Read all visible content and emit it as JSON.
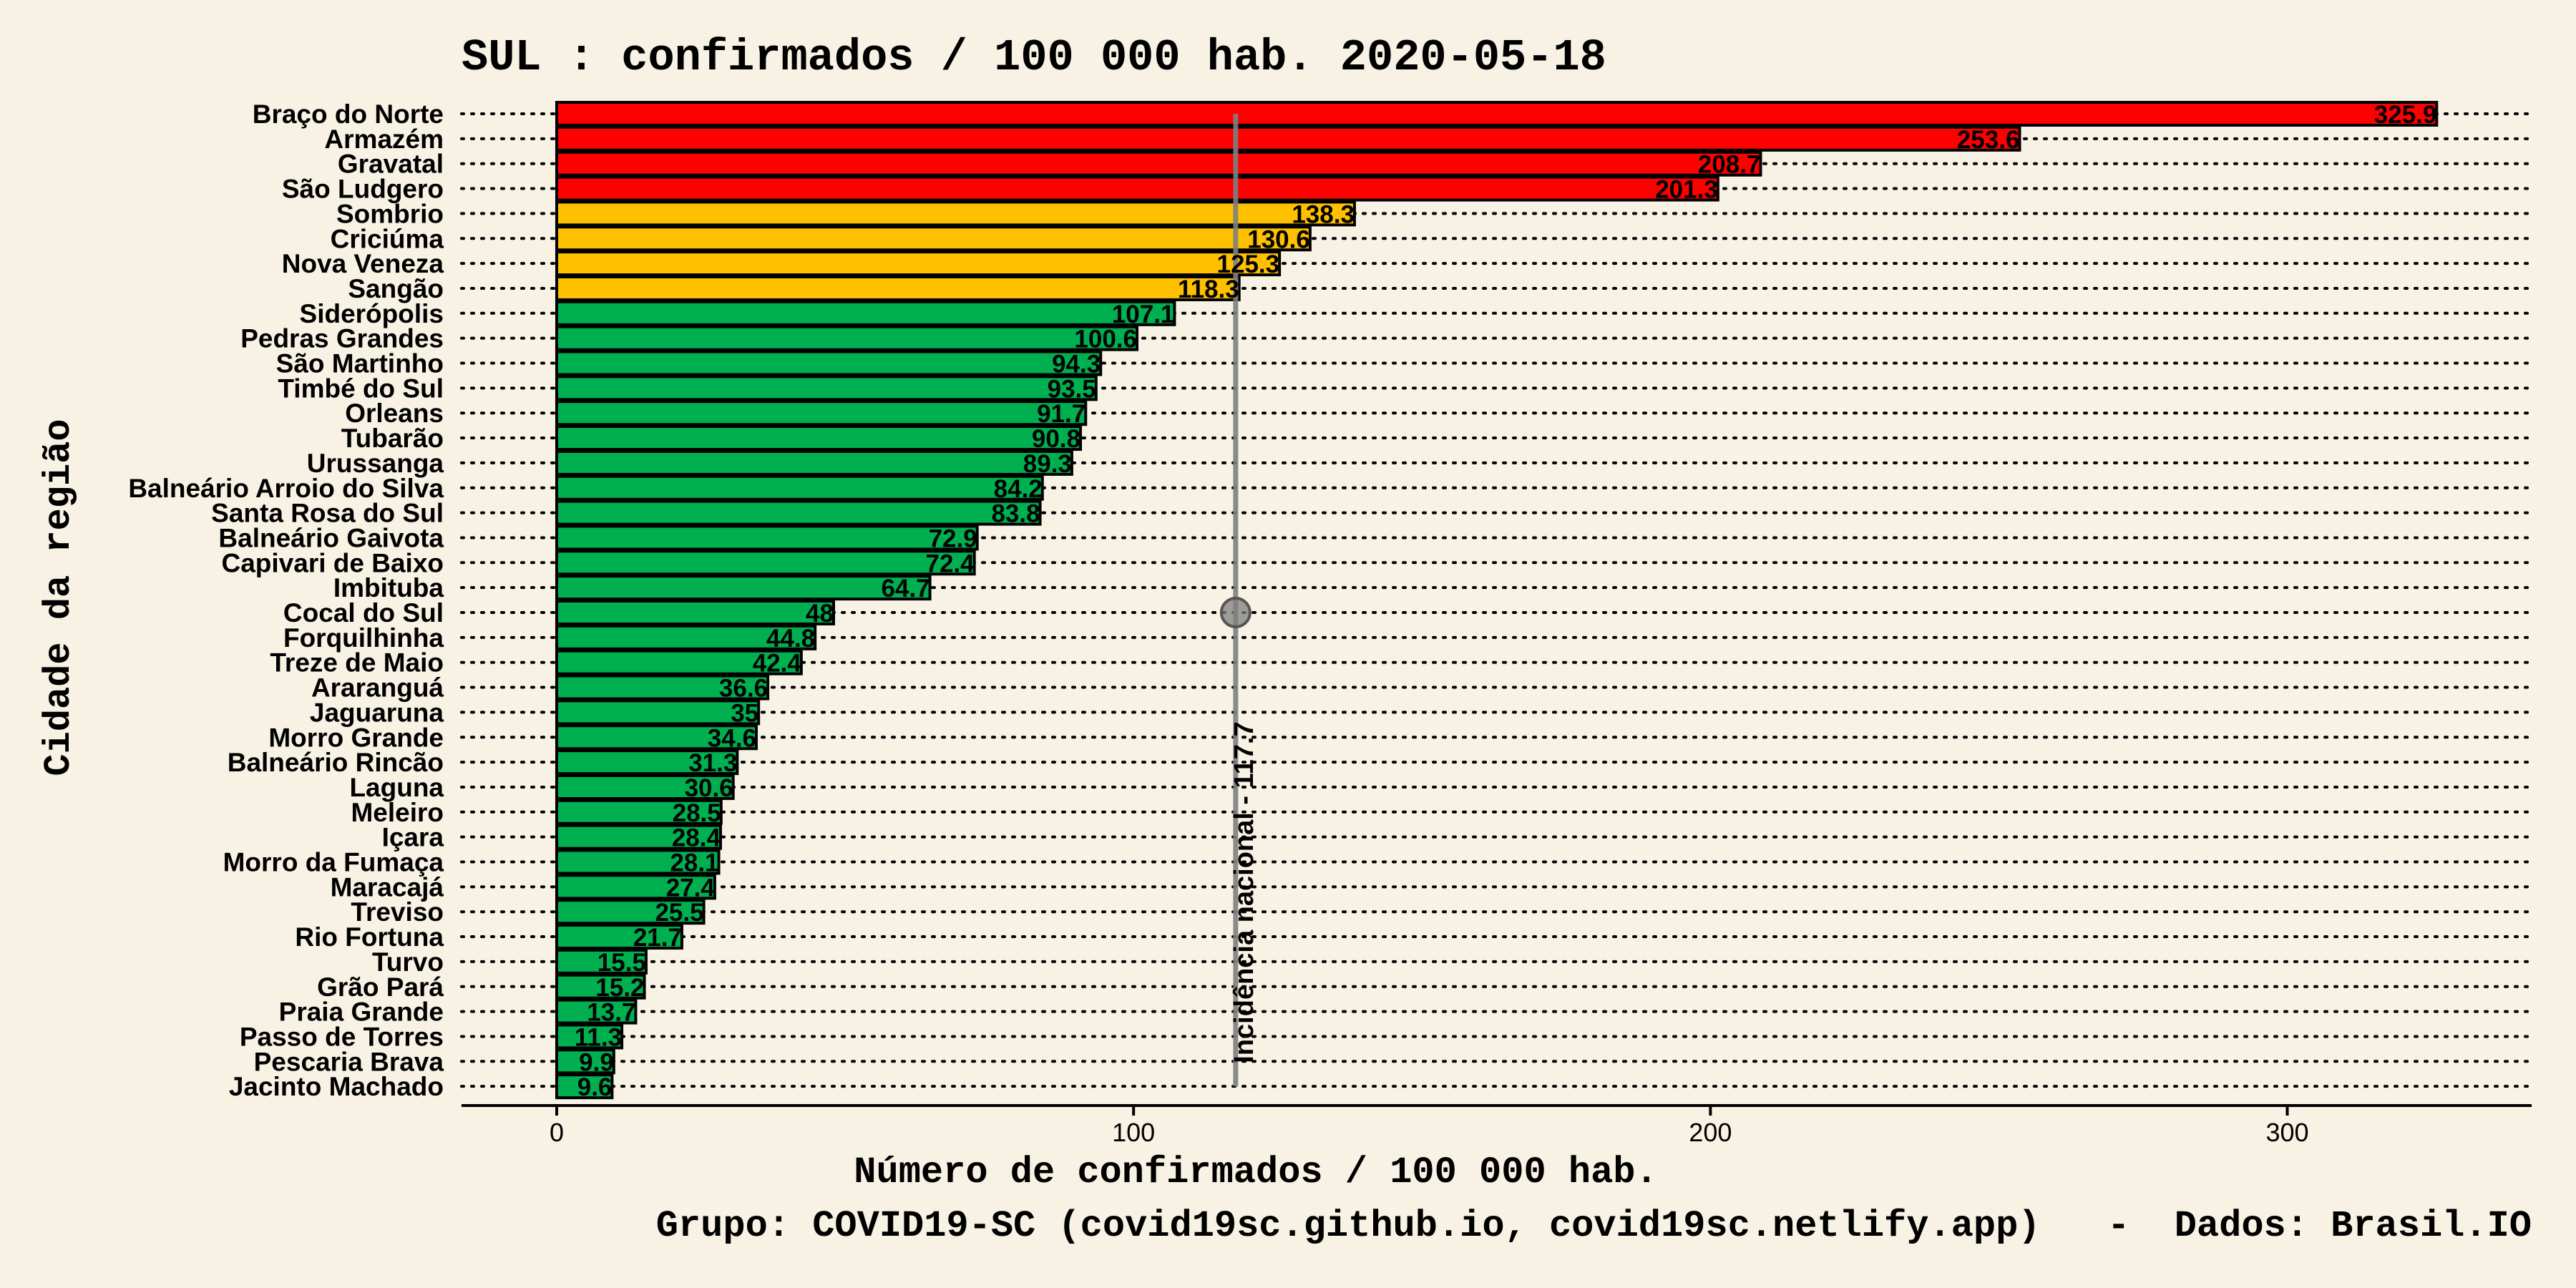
{
  "chart_data": {
    "type": "bar",
    "orientation": "horizontal",
    "title": "SUL : confirmados / 100 000 hab. 2020-05-18",
    "xlabel": "Número de confirmados / 100 000 hab.",
    "ylabel": "Cidade da região",
    "caption": "Grupo: COVID19-SC (covid19sc.github.io, covid19sc.netlify.app)   -  Dados: Brasil.IO",
    "xlim": [
      -16,
      342
    ],
    "xticks": [
      0,
      100,
      200,
      300
    ],
    "grid": "dotted horizontal lines per category",
    "colors": {
      "high": "#ff0000",
      "medium": "#ffc000",
      "low": "#00b050"
    },
    "categories": [
      "Braço do Norte",
      "Armazém",
      "Gravatal",
      "São Ludgero",
      "Sombrio",
      "Criciúma",
      "Nova Veneza",
      "Sangão",
      "Siderópolis",
      "Pedras Grandes",
      "São Martinho",
      "Timbé do Sul",
      "Orleans",
      "Tubarão",
      "Urussanga",
      "Balneário Arroio do Silva",
      "Santa Rosa do Sul",
      "Balneário Gaivota",
      "Capivari de Baixo",
      "Imbituba",
      "Cocal do Sul",
      "Forquilhinha",
      "Treze de Maio",
      "Araranguá",
      "Jaguaruna",
      "Morro Grande",
      "Balneário Rincão",
      "Laguna",
      "Meleiro",
      "Içara",
      "Morro da Fumaça",
      "Maracajá",
      "Treviso",
      "Rio Fortuna",
      "Turvo",
      "Grão Pará",
      "Praia Grande",
      "Passo de Torres",
      "Pescaria Brava",
      "Jacinto Machado"
    ],
    "values": [
      325.9,
      253.6,
      208.7,
      201.3,
      138.3,
      130.6,
      125.3,
      118.3,
      107.1,
      100.6,
      94.3,
      93.5,
      91.7,
      90.8,
      89.3,
      84.2,
      83.8,
      72.9,
      72.4,
      64.7,
      48,
      44.8,
      42.4,
      36.6,
      35,
      34.6,
      31.3,
      30.6,
      28.5,
      28.4,
      28.1,
      27.4,
      25.5,
      21.7,
      15.5,
      15.2,
      13.7,
      11.3,
      9.9,
      9.6
    ],
    "bar_labels": [
      "325.9",
      "253.6",
      "208.7",
      "201.3",
      "138.3",
      "130.6",
      "125.3",
      "118.3",
      "107.1",
      "100.6",
      "94.3",
      "93.5",
      "91.7",
      "90.8",
      "89.3",
      "84.2",
      "83.8",
      "72.9",
      "72.4",
      "64.7",
      "48",
      "44.8",
      "42.4",
      "36.6",
      "35",
      "34.6",
      "31.3",
      "30.6",
      "28.5",
      "28.4",
      "28.1",
      "27.4",
      "25.5",
      "21.7",
      "15.5",
      "15.2",
      "13.7",
      "11.3",
      "9.9",
      "9.6"
    ],
    "bar_colors": [
      "high",
      "high",
      "high",
      "high",
      "medium",
      "medium",
      "medium",
      "medium",
      "low",
      "low",
      "low",
      "low",
      "low",
      "low",
      "low",
      "low",
      "low",
      "low",
      "low",
      "low",
      "low",
      "low",
      "low",
      "low",
      "low",
      "low",
      "low",
      "low",
      "low",
      "low",
      "low",
      "low",
      "low",
      "low",
      "low",
      "low",
      "low",
      "low",
      "low",
      "low"
    ],
    "reference_line": {
      "value": 117.7,
      "label": "Incidência nacional - 117.7",
      "marker_category": "Cocal do Sul",
      "color": "#7f7f7f"
    }
  }
}
